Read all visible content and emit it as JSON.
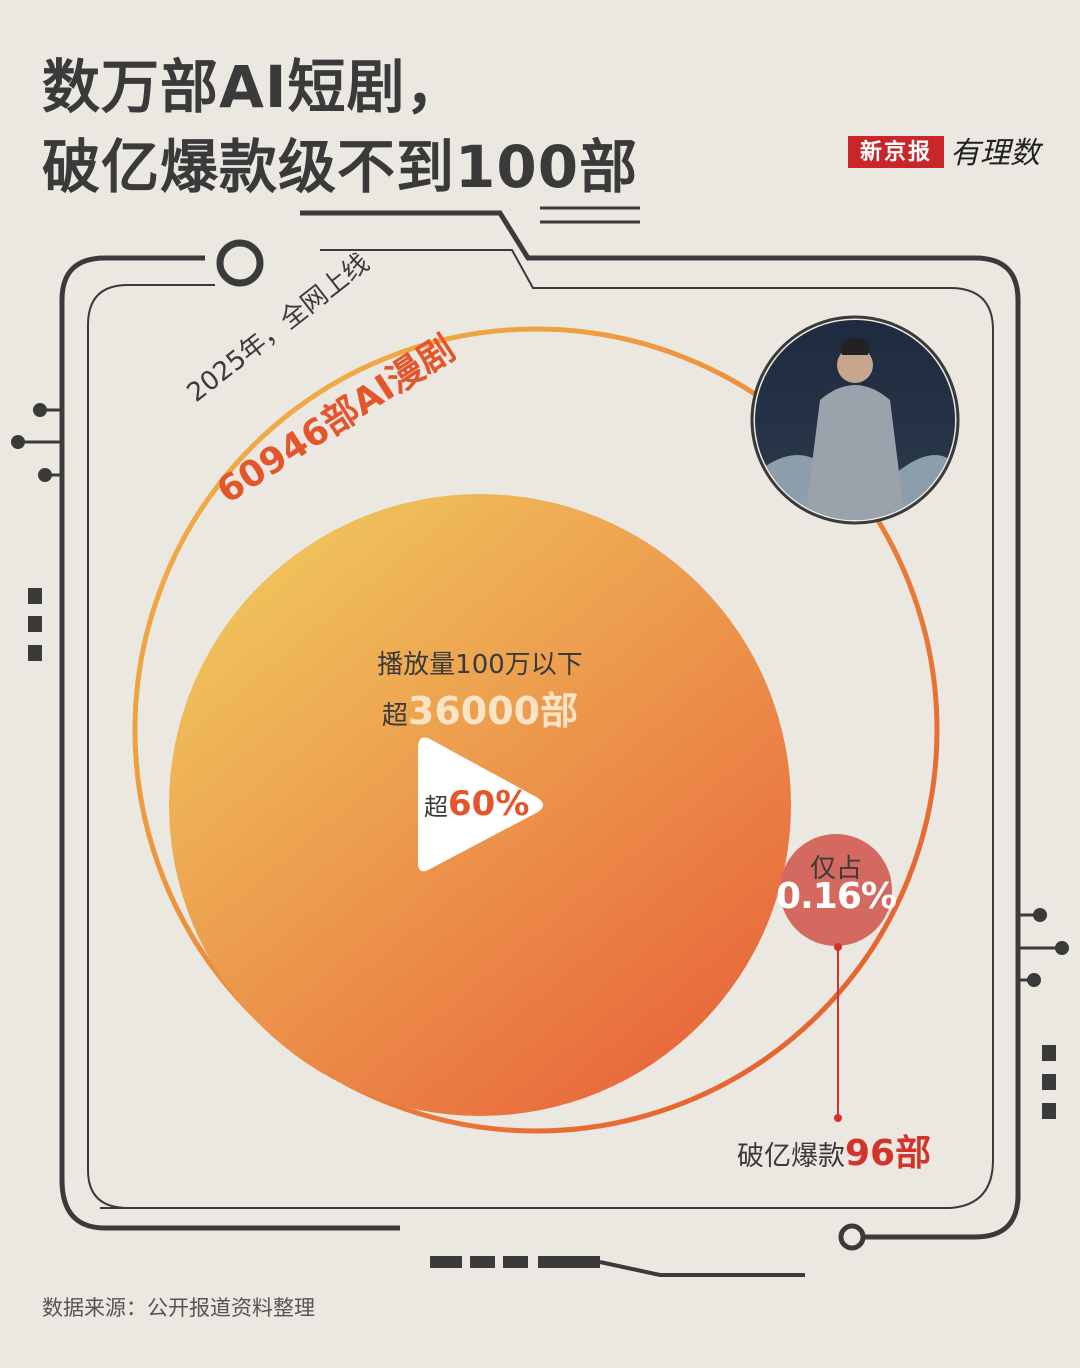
{
  "header": {
    "title_line1": "数万部AI短剧，",
    "title_line2": "破亿爆款级不到100部",
    "logo_brand": "新京报",
    "logo_column": "有理数"
  },
  "annotations": {
    "outer_label_top": "2025年，全网上线",
    "outer_label_value": "60946部AI漫剧",
    "middle_label": "播放量100万以下",
    "middle_prefix": "超",
    "middle_value": "36000部",
    "play_prefix": "超",
    "play_value": "60%",
    "small_label": "仅占",
    "small_value": "0.16%",
    "bottom_label": "破亿爆款",
    "bottom_value": "96部"
  },
  "footer": {
    "source": "数据来源：公开报道资料整理"
  },
  "colors": {
    "background": "#ebe7e1",
    "accent_red": "#d2342c",
    "small_circle": "#d4695f",
    "big_fill_start": "#f0c25a",
    "big_fill_end": "#e8643a",
    "frame": "#3b3a3a"
  },
  "chart_data": {
    "type": "bubble",
    "title": "数万部AI短剧，破亿爆款级不到100部",
    "series": [
      {
        "label": "2025年，全网上线AI漫剧",
        "value": 60946,
        "style": "outline"
      },
      {
        "label": "播放量100万以下",
        "value": 36000,
        "share_percent": 60,
        "style": "filled"
      },
      {
        "label": "破亿爆款",
        "value": 96,
        "share_percent": 0.16,
        "style": "filled"
      }
    ],
    "icons": [
      "play-icon",
      "warrior-avatar"
    ]
  }
}
